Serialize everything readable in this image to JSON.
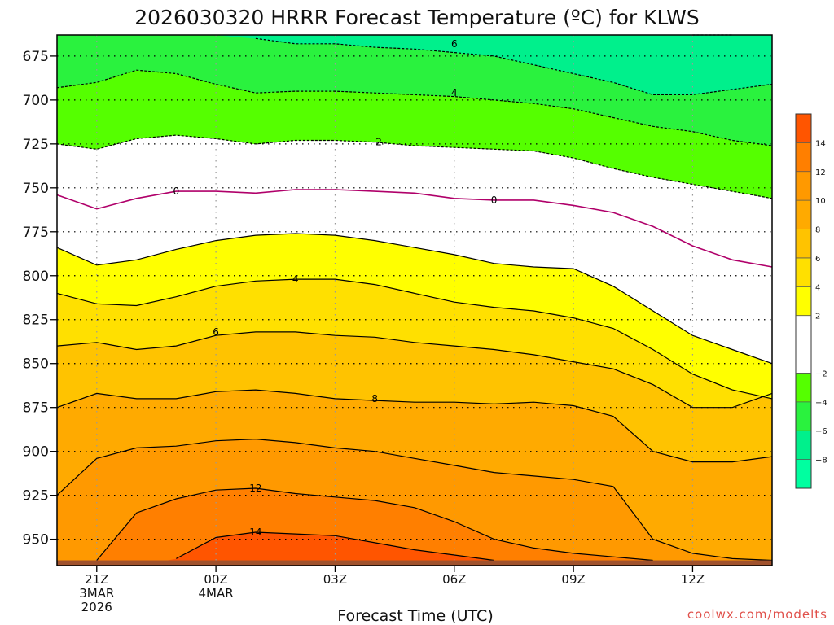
{
  "chart_data": {
    "type": "heatmap",
    "title": "2026030320 HRRR Forecast Temperature (ºC) for KLWS",
    "xlabel": "Forecast Time (UTC)",
    "ylabel": "",
    "credit": "coolwx.com/modelts",
    "x_ticks": [
      {
        "h": 1,
        "lines": [
          "21Z",
          "3MAR",
          "2026"
        ]
      },
      {
        "h": 4,
        "lines": [
          "00Z",
          "4MAR"
        ]
      },
      {
        "h": 7,
        "lines": [
          "03Z"
        ]
      },
      {
        "h": 10,
        "lines": [
          "06Z"
        ]
      },
      {
        "h": 13,
        "lines": [
          "09Z"
        ]
      },
      {
        "h": 16,
        "lines": [
          "12Z"
        ]
      }
    ],
    "xlim": [
      0,
      18
    ],
    "y_ticks": [
      675,
      700,
      725,
      750,
      775,
      800,
      825,
      850,
      875,
      900,
      925,
      950
    ],
    "ylim": [
      663,
      965
    ],
    "y_inverted": true,
    "ground_pressure": 962,
    "grid": true,
    "x": [
      0,
      1,
      2,
      3,
      4,
      5,
      6,
      7,
      8,
      9,
      10,
      11,
      12,
      13,
      14,
      15,
      16,
      17,
      18
    ],
    "contours": [
      {
        "level": 14,
        "p": [
          null,
          null,
          null,
          961,
          949,
          946,
          947,
          948,
          952,
          956,
          959,
          962,
          null,
          null,
          null,
          null,
          null,
          null,
          null
        ]
      },
      {
        "level": 12,
        "p": [
          null,
          962,
          935,
          927,
          922,
          921,
          924,
          926,
          928,
          932,
          940,
          950,
          955,
          958,
          960,
          962,
          null,
          null,
          null
        ]
      },
      {
        "level": 10,
        "p": [
          925,
          904,
          898,
          897,
          894,
          893,
          895,
          898,
          900,
          904,
          908,
          912,
          914,
          916,
          920,
          950,
          958,
          961,
          962
        ]
      },
      {
        "level": 8,
        "p": [
          875,
          867,
          870,
          870,
          866,
          865,
          867,
          870,
          871,
          872,
          872,
          873,
          872,
          874,
          880,
          900,
          906,
          906,
          903
        ]
      },
      {
        "level": 6,
        "p": [
          840,
          838,
          842,
          840,
          834,
          832,
          832,
          834,
          835,
          838,
          840,
          842,
          845,
          849,
          853,
          862,
          875,
          875,
          867
        ]
      },
      {
        "level": 4,
        "p": [
          810,
          816,
          817,
          812,
          806,
          803,
          802,
          802,
          805,
          810,
          815,
          818,
          820,
          824,
          830,
          842,
          856,
          865,
          870
        ]
      },
      {
        "level": 2,
        "p": [
          784,
          794,
          791,
          785,
          780,
          777,
          776,
          777,
          780,
          784,
          788,
          793,
          795,
          796,
          806,
          820,
          834,
          842,
          850
        ]
      },
      {
        "level": 0,
        "p": [
          754,
          762,
          756,
          752,
          752,
          753,
          751,
          751,
          752,
          753,
          756,
          757,
          757,
          760,
          764,
          772,
          783,
          791,
          795
        ]
      },
      {
        "level": -2,
        "p": [
          725,
          728,
          722,
          720,
          722,
          725,
          723,
          723,
          724,
          726,
          727,
          728,
          729,
          733,
          739,
          744,
          748,
          752,
          756
        ]
      },
      {
        "level": -4,
        "p": [
          693,
          690,
          683,
          685,
          691,
          696,
          695,
          695,
          696,
          697,
          698,
          700,
          702,
          705,
          710,
          715,
          718,
          723,
          726
        ]
      },
      {
        "level": -6,
        "p": [
          null,
          null,
          null,
          null,
          null,
          665,
          668,
          668,
          670,
          671,
          673,
          675,
          680,
          685,
          690,
          697,
          697,
          694,
          691
        ]
      },
      {
        "level": -8,
        "p": [
          null,
          null,
          null,
          null,
          null,
          null,
          null,
          null,
          null,
          null,
          null,
          null,
          null,
          null,
          null,
          null,
          663,
          663,
          null
        ]
      }
    ],
    "contour_labels": [
      {
        "text": "6",
        "x": 10.0,
        "p": 668
      },
      {
        "text": "4",
        "x": 10.0,
        "p": 696
      },
      {
        "text": "2",
        "x": 8.1,
        "p": 724
      },
      {
        "text": "0",
        "x": 3.0,
        "p": 752
      },
      {
        "text": "0",
        "x": 11.0,
        "p": 757
      },
      {
        "text": "4",
        "x": 6.0,
        "p": 802
      },
      {
        "text": "6",
        "x": 4.0,
        "p": 832
      },
      {
        "text": "8",
        "x": 8.0,
        "p": 870
      },
      {
        "text": "12",
        "x": 5.0,
        "p": 921
      },
      {
        "text": "14",
        "x": 5.0,
        "p": 946
      }
    ],
    "colorbar": {
      "bands": [
        {
          "min": -10,
          "max": -8,
          "color": "#00ffa0"
        },
        {
          "min": -8,
          "max": -6,
          "color": "#00f08c"
        },
        {
          "min": -6,
          "max": -4,
          "color": "#2af23e"
        },
        {
          "min": -4,
          "max": -2,
          "color": "#55ff00"
        },
        {
          "min": -2,
          "max": 2,
          "color": "#ffffff"
        },
        {
          "min": 2,
          "max": 4,
          "color": "#ffff00"
        },
        {
          "min": 4,
          "max": 6,
          "color": "#ffe000"
        },
        {
          "min": 6,
          "max": 8,
          "color": "#ffc300"
        },
        {
          "min": 8,
          "max": 10,
          "color": "#ffaa00"
        },
        {
          "min": 10,
          "max": 12,
          "color": "#ff9900"
        },
        {
          "min": 12,
          "max": 14,
          "color": "#ff7f00"
        },
        {
          "min": 14,
          "max": 16,
          "color": "#ff5500"
        }
      ],
      "tick_labels": [
        {
          "v": 14,
          "text": "14"
        },
        {
          "v": 12,
          "text": "12"
        },
        {
          "v": 10,
          "text": "10"
        },
        {
          "v": 8,
          "text": "8"
        },
        {
          "v": 6,
          "text": "6"
        },
        {
          "v": 4,
          "text": "4"
        },
        {
          "v": 2,
          "text": "2"
        },
        {
          "v": -2,
          "text": "−2"
        },
        {
          "v": -4,
          "text": "−4"
        },
        {
          "v": -6,
          "text": "−6"
        },
        {
          "v": -8,
          "text": "−8"
        }
      ]
    },
    "colors": {
      "ground": "#a0522d",
      "freezing_line": "#b0006a",
      "contour": "#000000"
    }
  }
}
